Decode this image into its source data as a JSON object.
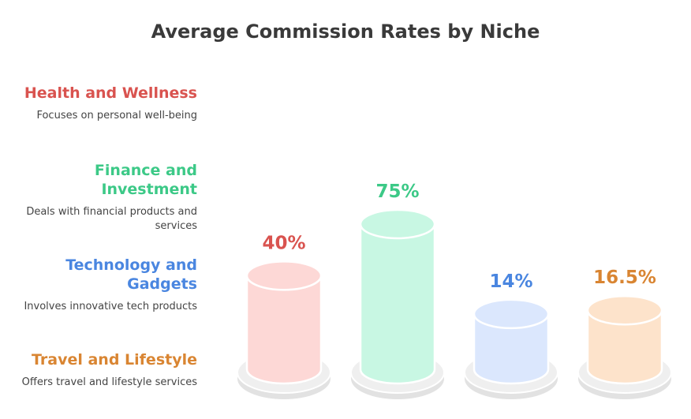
{
  "chart_data": {
    "type": "bar",
    "title": "Average Commission Rates by Niche",
    "categories": [
      "Health and Wellness",
      "Finance and Investment",
      "Technology and Gadgets",
      "Travel and Lifestyle"
    ],
    "values": [
      40,
      75,
      14,
      16.5
    ],
    "value_labels": [
      "40%",
      "75%",
      "14%",
      "16.5%"
    ],
    "descriptions": [
      "Focuses on personal well-being",
      "Deals with financial products and services",
      "Involves innovative tech products",
      "Offers travel and lifestyle services"
    ],
    "colors": {
      "text": [
        "#d9534f",
        "#3cc987",
        "#4a86e0",
        "#d98532"
      ],
      "fill": [
        "#fdd8d6",
        "#c8f7e3",
        "#dbe7fd",
        "#fde3cb"
      ]
    },
    "xlabel": "",
    "ylabel": "",
    "ylim": [
      0,
      75
    ],
    "legend": "left"
  }
}
